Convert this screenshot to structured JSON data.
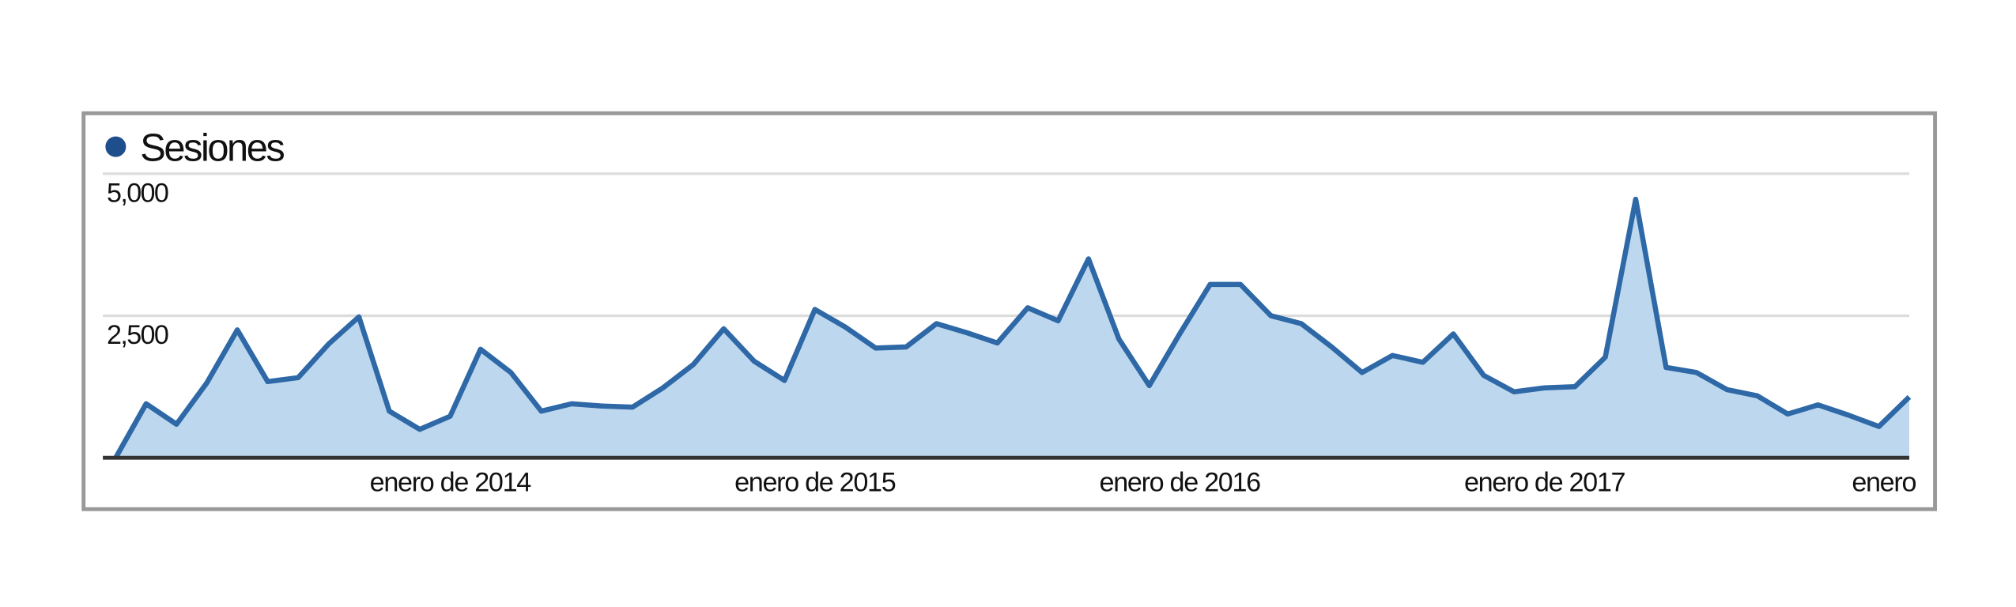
{
  "chart_data": {
    "type": "area",
    "categories": [
      null,
      null,
      null,
      null,
      null,
      null,
      null,
      null,
      null,
      null,
      null,
      "enero de 2014",
      null,
      null,
      null,
      null,
      null,
      null,
      null,
      null,
      null,
      null,
      null,
      "enero de 2015",
      null,
      null,
      null,
      null,
      null,
      null,
      null,
      null,
      null,
      null,
      null,
      "enero de 2016",
      null,
      null,
      null,
      null,
      null,
      null,
      null,
      null,
      null,
      null,
      null,
      "enero de 2017",
      null,
      null,
      null,
      null,
      null,
      null,
      null,
      null,
      null,
      null,
      null,
      "enero"
    ],
    "series": [
      {
        "name": "Sesiones",
        "color": "#2e68a6",
        "fill": "#bdd8ee",
        "values": [
          0,
          950,
          590,
          1320,
          2250,
          1340,
          1410,
          2000,
          2480,
          820,
          500,
          730,
          1910,
          1500,
          820,
          950,
          910,
          890,
          1230,
          1640,
          2270,
          1700,
          1360,
          2610,
          2300,
          1930,
          1950,
          2360,
          2200,
          2020,
          2640,
          2410,
          3500,
          2090,
          1270,
          2180,
          3050,
          3050,
          2500,
          2360,
          1950,
          1500,
          1800,
          1680,
          2180,
          1450,
          1160,
          1230,
          1250,
          1770,
          4550,
          1590,
          1500,
          1200,
          1090,
          770,
          930,
          750,
          550,
          1070
        ]
      }
    ],
    "ylim": [
      0,
      5000
    ],
    "yticks": [
      {
        "value": 2500,
        "label": "2,500"
      },
      {
        "value": 5000,
        "label": "5,000"
      }
    ],
    "grid": true,
    "legend": "top-left"
  }
}
